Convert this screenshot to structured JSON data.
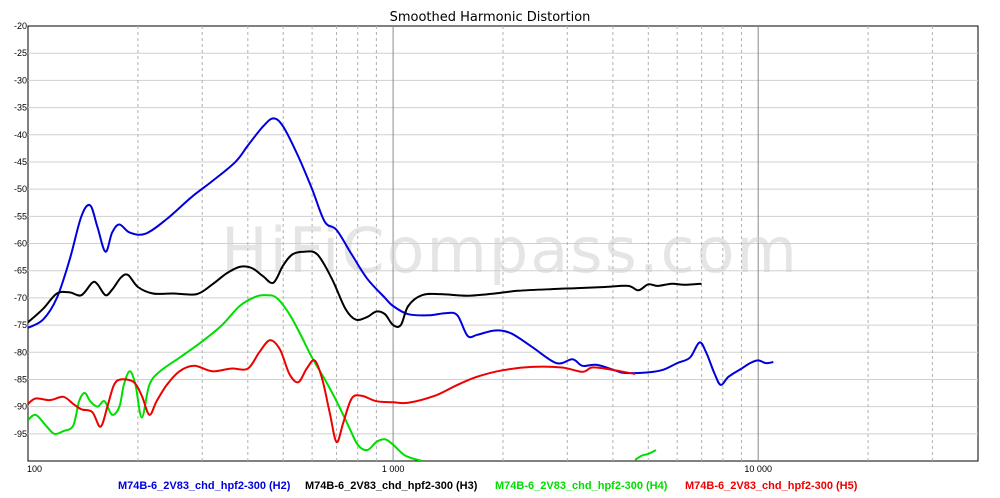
{
  "title": "Smoothed Harmonic Distortion",
  "watermark": "HiFiCompass.com",
  "chart_data": {
    "type": "line",
    "title": "Smoothed Harmonic Distortion",
    "xlabel": "",
    "ylabel": "",
    "x_scale": "log",
    "xlim": [
      100,
      40000
    ],
    "ylim": [
      -100,
      -20
    ],
    "y_ticks": [
      -20,
      -25,
      -30,
      -35,
      -40,
      -45,
      -50,
      -55,
      -60,
      -65,
      -70,
      -75,
      -80,
      -85,
      -90,
      -95
    ],
    "y_tick_labels": [
      "-20",
      "-25",
      "-30",
      "-35",
      "-40",
      "-45",
      "-50",
      "-55",
      "-60",
      "-65",
      "-70",
      "-75",
      "-80",
      "-85",
      "-90",
      "-95"
    ],
    "x_ticks": [
      100,
      1000,
      10000
    ],
    "x_tick_labels": [
      "100",
      "1 000",
      "10 000"
    ],
    "grid": true,
    "legend_position": "bottom",
    "series": [
      {
        "name": "M74B-6_2V83_chd_hpf2-300 (H2)",
        "color": "#0000dd",
        "points": [
          [
            100,
            -75.5
          ],
          [
            110,
            -74
          ],
          [
            120,
            -70
          ],
          [
            130,
            -63
          ],
          [
            140,
            -55
          ],
          [
            148,
            -53
          ],
          [
            155,
            -57
          ],
          [
            163,
            -61.5
          ],
          [
            170,
            -58
          ],
          [
            178,
            -56.5
          ],
          [
            190,
            -58
          ],
          [
            210,
            -58.2
          ],
          [
            240,
            -55.5
          ],
          [
            280,
            -51.5
          ],
          [
            320,
            -48.5
          ],
          [
            370,
            -45
          ],
          [
            400,
            -42
          ],
          [
            440,
            -38.5
          ],
          [
            470,
            -37
          ],
          [
            500,
            -38.5
          ],
          [
            550,
            -44
          ],
          [
            600,
            -50
          ],
          [
            650,
            -56
          ],
          [
            700,
            -57.5
          ],
          [
            770,
            -62
          ],
          [
            850,
            -66.5
          ],
          [
            950,
            -70
          ],
          [
            1000,
            -71.5
          ],
          [
            1100,
            -73
          ],
          [
            1250,
            -73.2
          ],
          [
            1400,
            -72.8
          ],
          [
            1500,
            -73.2
          ],
          [
            1600,
            -77
          ],
          [
            1700,
            -76.8
          ],
          [
            1900,
            -76
          ],
          [
            2100,
            -76.5
          ],
          [
            2400,
            -79
          ],
          [
            2800,
            -82
          ],
          [
            3100,
            -81.3
          ],
          [
            3300,
            -82.5
          ],
          [
            3600,
            -82.3
          ],
          [
            4000,
            -83.2
          ],
          [
            4300,
            -83.8
          ],
          [
            5000,
            -83.7
          ],
          [
            5500,
            -83.2
          ],
          [
            6000,
            -82
          ],
          [
            6500,
            -81
          ],
          [
            6900,
            -78.2
          ],
          [
            7200,
            -80
          ],
          [
            7600,
            -84
          ],
          [
            7900,
            -86
          ],
          [
            8300,
            -84.5
          ],
          [
            9000,
            -83
          ],
          [
            9500,
            -82
          ],
          [
            10000,
            -81.5
          ],
          [
            10500,
            -82
          ],
          [
            11000,
            -81.8
          ]
        ]
      },
      {
        "name": "M74B-6_2V83_chd_hpf2-300 (H3)",
        "color": "#000000",
        "points": [
          [
            100,
            -74.5
          ],
          [
            110,
            -72
          ],
          [
            120,
            -69.2
          ],
          [
            130,
            -69
          ],
          [
            140,
            -69.5
          ],
          [
            150,
            -67.2
          ],
          [
            155,
            -67.5
          ],
          [
            163,
            -69.5
          ],
          [
            170,
            -68.5
          ],
          [
            180,
            -66.2
          ],
          [
            188,
            -65.8
          ],
          [
            200,
            -68
          ],
          [
            220,
            -69.2
          ],
          [
            250,
            -69.2
          ],
          [
            290,
            -69.3
          ],
          [
            320,
            -67.5
          ],
          [
            350,
            -65.5
          ],
          [
            380,
            -64.3
          ],
          [
            410,
            -64.5
          ],
          [
            440,
            -66
          ],
          [
            470,
            -67.2
          ],
          [
            500,
            -64
          ],
          [
            530,
            -62
          ],
          [
            570,
            -61.5
          ],
          [
            620,
            -62
          ],
          [
            680,
            -66.5
          ],
          [
            740,
            -72
          ],
          [
            790,
            -74
          ],
          [
            850,
            -73.5
          ],
          [
            900,
            -72.5
          ],
          [
            950,
            -73
          ],
          [
            1000,
            -75
          ],
          [
            1050,
            -75
          ],
          [
            1100,
            -71.5
          ],
          [
            1200,
            -69.5
          ],
          [
            1350,
            -69.3
          ],
          [
            1600,
            -69.6
          ],
          [
            1900,
            -69.2
          ],
          [
            2200,
            -68.7
          ],
          [
            2700,
            -68.4
          ],
          [
            3200,
            -68.2
          ],
          [
            3800,
            -68
          ],
          [
            4400,
            -67.8
          ],
          [
            4700,
            -68.6
          ],
          [
            5000,
            -67.5
          ],
          [
            5300,
            -67.8
          ],
          [
            5800,
            -67.4
          ],
          [
            6300,
            -67.6
          ],
          [
            7000,
            -67.4
          ]
        ]
      },
      {
        "name": "M74B-6_2V83_chd_hpf2-300 (H4)",
        "color": "#00dd00",
        "points": [
          [
            100,
            -92.5
          ],
          [
            105,
            -91.5
          ],
          [
            112,
            -93.5
          ],
          [
            118,
            -95
          ],
          [
            125,
            -94.5
          ],
          [
            133,
            -93.5
          ],
          [
            138,
            -89
          ],
          [
            143,
            -87.5
          ],
          [
            148,
            -89
          ],
          [
            155,
            -90
          ],
          [
            162,
            -89
          ],
          [
            170,
            -91.5
          ],
          [
            178,
            -90
          ],
          [
            183,
            -86
          ],
          [
            190,
            -83.5
          ],
          [
            197,
            -86
          ],
          [
            205,
            -92
          ],
          [
            215,
            -86
          ],
          [
            230,
            -83.5
          ],
          [
            260,
            -81
          ],
          [
            300,
            -78
          ],
          [
            340,
            -75
          ],
          [
            380,
            -71.5
          ],
          [
            420,
            -69.8
          ],
          [
            450,
            -69.5
          ],
          [
            480,
            -70
          ],
          [
            520,
            -73
          ],
          [
            560,
            -77
          ],
          [
            600,
            -81
          ],
          [
            650,
            -85
          ],
          [
            700,
            -89
          ],
          [
            760,
            -94
          ],
          [
            800,
            -97
          ],
          [
            850,
            -98
          ],
          [
            900,
            -96.5
          ],
          [
            950,
            -96
          ],
          [
            1000,
            -97
          ],
          [
            1080,
            -99
          ],
          [
            1200,
            -100
          ]
        ]
      },
      {
        "name": "M74B-6_2V83_chd_hpf2-300 (H4)",
        "color": "#00dd00",
        "points": [
          [
            4600,
            -99.8
          ],
          [
            4800,
            -99
          ],
          [
            5000,
            -98.7
          ],
          [
            5250,
            -98
          ]
        ]
      },
      {
        "name": "M74B-6_2V83_chd_hpf2-300 (H5)",
        "color": "#ee0000",
        "points": [
          [
            100,
            -89.5
          ],
          [
            105,
            -88.5
          ],
          [
            115,
            -88.8
          ],
          [
            125,
            -88.2
          ],
          [
            133,
            -89.5
          ],
          [
            140,
            -90.5
          ],
          [
            150,
            -91
          ],
          [
            158,
            -93.7
          ],
          [
            165,
            -90
          ],
          [
            172,
            -86
          ],
          [
            180,
            -85
          ],
          [
            195,
            -85.5
          ],
          [
            205,
            -88
          ],
          [
            215,
            -91.5
          ],
          [
            225,
            -89
          ],
          [
            240,
            -86
          ],
          [
            260,
            -83.5
          ],
          [
            285,
            -82.5
          ],
          [
            320,
            -83.5
          ],
          [
            360,
            -83
          ],
          [
            400,
            -83
          ],
          [
            430,
            -80
          ],
          [
            460,
            -77.8
          ],
          [
            490,
            -79.5
          ],
          [
            520,
            -84
          ],
          [
            550,
            -85.5
          ],
          [
            580,
            -83
          ],
          [
            610,
            -81.5
          ],
          [
            640,
            -85
          ],
          [
            670,
            -91
          ],
          [
            700,
            -96.5
          ],
          [
            730,
            -93
          ],
          [
            770,
            -88.5
          ],
          [
            820,
            -88
          ],
          [
            900,
            -89
          ],
          [
            1000,
            -89.2
          ],
          [
            1100,
            -89.3
          ],
          [
            1300,
            -88
          ],
          [
            1500,
            -86
          ],
          [
            1700,
            -84.5
          ],
          [
            2000,
            -83.3
          ],
          [
            2400,
            -82.7
          ],
          [
            2900,
            -82.8
          ],
          [
            3300,
            -83.6
          ],
          [
            3500,
            -82.8
          ],
          [
            3800,
            -83
          ],
          [
            4200,
            -83.5
          ],
          [
            4600,
            -84
          ]
        ]
      }
    ],
    "legend": [
      {
        "label": "M74B-6_2V83_chd_hpf2-300 (H2)",
        "color": "#0000dd"
      },
      {
        "label": "M74B-6_2V83_chd_hpf2-300 (H3)",
        "color": "#000000"
      },
      {
        "label": "M74B-6_2V83_chd_hpf2-300 (H4)",
        "color": "#00dd00"
      },
      {
        "label": "M74B-6_2V83_chd_hpf2-300 (H5)",
        "color": "#ee0000"
      }
    ]
  }
}
